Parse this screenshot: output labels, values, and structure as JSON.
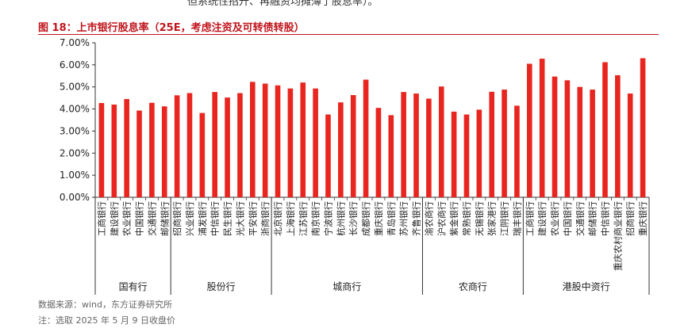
{
  "header": {
    "top_text": "但系统性招升、再融资均摊薄了股息率）。",
    "title": "图 18：上市银行股息率（25E，考虑注资及可转债转股）"
  },
  "colors": {
    "bar": "#e8251f",
    "title": "#c0141c",
    "axis": "#333333"
  },
  "chart_data": {
    "type": "bar",
    "title": "图 18：上市银行股息率（25E，考虑注资及可转债转股）",
    "xlabel": "",
    "ylabel": "",
    "ylim": [
      0,
      7
    ],
    "yticks": [
      "0.00%",
      "1.00%",
      "2.00%",
      "3.00%",
      "4.00%",
      "5.00%",
      "6.00%",
      "7.00%"
    ],
    "grid": false,
    "categories": [
      "工商银行",
      "建设银行",
      "农业银行",
      "中国银行",
      "交通银行",
      "邮储银行",
      "招商银行",
      "兴业银行",
      "浦发银行",
      "中信银行",
      "民生银行",
      "光大银行",
      "平安银行",
      "浙商银行",
      "北京银行",
      "上海银行",
      "江苏银行",
      "南京银行",
      "宁波银行",
      "杭州银行",
      "长沙银行",
      "成都银行",
      "重庆银行",
      "青岛银行",
      "苏州银行",
      "齐鲁银行",
      "渝农商行",
      "沪农商行",
      "紫金银行",
      "常熟银行",
      "无锡银行",
      "张家港行",
      "江阴银行",
      "瑞丰银行",
      "工商银行",
      "建设银行",
      "农业银行",
      "中国银行",
      "交通银行",
      "邮储银行",
      "中信银行",
      "重庆农村商业银行",
      "招商银行",
      "重庆银行"
    ],
    "values": [
      4.27,
      4.2,
      4.45,
      3.93,
      4.28,
      4.12,
      4.62,
      4.72,
      3.82,
      4.77,
      4.52,
      4.72,
      5.23,
      5.15,
      5.07,
      4.93,
      5.2,
      4.93,
      3.75,
      4.3,
      4.63,
      5.33,
      4.05,
      3.72,
      4.77,
      4.7,
      4.47,
      5.02,
      3.88,
      3.75,
      3.97,
      4.78,
      4.88,
      4.15,
      6.05,
      6.28,
      5.47,
      5.3,
      5.0,
      4.88,
      6.12,
      5.53,
      4.7,
      6.3
    ],
    "groups": [
      {
        "name": "国有行",
        "start": 0,
        "end": 5
      },
      {
        "name": "股份行",
        "start": 6,
        "end": 13
      },
      {
        "name": "城商行",
        "start": 14,
        "end": 25
      },
      {
        "name": "农商行",
        "start": 26,
        "end": 33
      },
      {
        "name": "港股中资行",
        "start": 34,
        "end": 43
      }
    ]
  },
  "footer": {
    "source": "数据来源：wind，东方证券研究所",
    "note": "注：选取 2025 年 5 月 9 日收盘价"
  }
}
